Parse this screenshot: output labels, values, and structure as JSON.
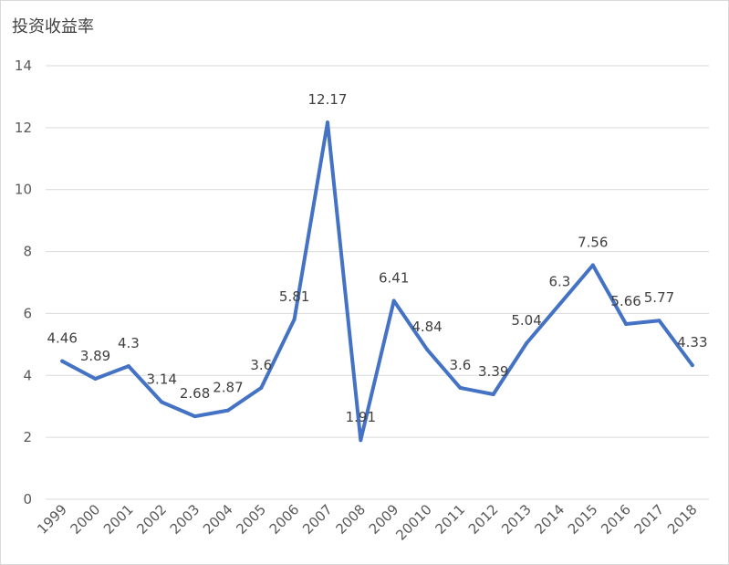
{
  "chart_data": {
    "type": "line",
    "title": "投资收益率",
    "xlabel": "",
    "ylabel": "",
    "categories": [
      "1999",
      "2000",
      "2001",
      "2002",
      "2003",
      "2004",
      "2005",
      "2006",
      "2007",
      "2008",
      "2009",
      "20010",
      "2011",
      "2012",
      "2013",
      "2014",
      "2015",
      "2016",
      "2017",
      "2018"
    ],
    "series": [
      {
        "values": [
          4.46,
          3.89,
          4.3,
          3.14,
          2.68,
          2.87,
          3.6,
          5.81,
          12.17,
          1.91,
          6.41,
          4.84,
          3.6,
          3.39,
          5.04,
          6.3,
          7.56,
          5.66,
          5.77,
          4.33
        ]
      }
    ],
    "data_labels": [
      "4.46",
      "3.89",
      "4.3",
      "3.14",
      "2.68",
      "2.87",
      "3.6",
      "5.81",
      "12.17",
      "1.91",
      "6.41",
      "4.84",
      "3.6",
      "3.39",
      "5.04",
      "6.3",
      "7.56",
      "5.66",
      "5.77",
      "4.33"
    ],
    "y_ticks": [
      "0",
      "2",
      "4",
      "6",
      "8",
      "10",
      "12",
      "14"
    ],
    "ylim": [
      0,
      14
    ],
    "grid": true,
    "legend": "none",
    "colors": {
      "line": "#4472c4",
      "grid": "#d9d9d9",
      "text": "#595959"
    }
  }
}
